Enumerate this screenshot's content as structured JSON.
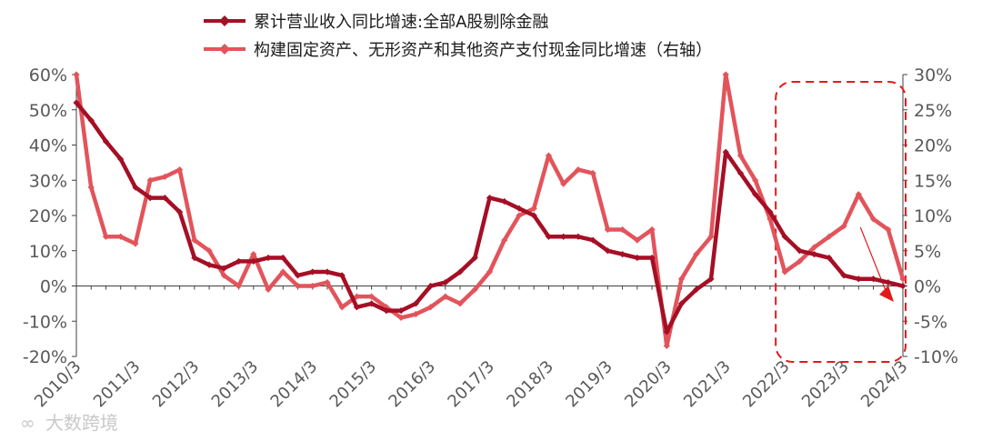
{
  "chart_data": {
    "type": "line",
    "title": "",
    "xlabel": "",
    "ylabel": "",
    "ylim_left": [
      -20,
      60
    ],
    "ylim_right": [
      -10,
      30
    ],
    "left_ticks": [
      "60%",
      "50%",
      "40%",
      "30%",
      "20%",
      "10%",
      "0%",
      "-10%",
      "-20%"
    ],
    "right_ticks": [
      "30%",
      "25%",
      "20%",
      "15%",
      "10%",
      "5%",
      "0%",
      "-5%",
      "-10%"
    ],
    "x_tick_labels": [
      "2010/3",
      "2011/3",
      "2012/3",
      "2013/3",
      "2014/3",
      "2015/3",
      "2016/3",
      "2017/3",
      "2018/3",
      "2019/3",
      "2020/3",
      "2021/3",
      "2022/3",
      "2023/3",
      "2024/3"
    ],
    "x_start": "2010/3",
    "x_frequency": "quarterly",
    "series": [
      {
        "name": "累计营业收入同比增速:全部A股剔除金融",
        "axis": "left",
        "color": "#a50f25",
        "values": [
          52,
          47,
          41,
          36,
          28,
          25,
          25,
          21,
          8,
          6,
          5,
          7,
          7,
          8,
          8,
          3,
          4,
          4,
          3,
          -6,
          -5,
          -7,
          -7,
          -5,
          0,
          1,
          4,
          8,
          25,
          24,
          22,
          20,
          14,
          14,
          14,
          13,
          10,
          9,
          8,
          8,
          -13,
          -5,
          -1,
          2,
          38,
          32,
          26,
          21,
          14,
          10,
          9,
          8,
          3,
          2,
          2,
          1,
          0
        ]
      },
      {
        "name": "构建固定资产、无形资产和其他资产支付现金同比增速（右轴）",
        "axis": "right",
        "color": "#e2545b",
        "values": [
          30,
          14,
          7,
          7,
          6,
          15,
          15.5,
          16.5,
          6.5,
          5,
          1.5,
          0,
          4.5,
          -0.5,
          2,
          0,
          0,
          0.5,
          -3,
          -1.5,
          -1.5,
          -3,
          -4.5,
          -4,
          -3,
          -1.5,
          -2.5,
          -0.5,
          2,
          6.5,
          10,
          11,
          18.5,
          14.5,
          16.5,
          16,
          8,
          8,
          6.5,
          8,
          -8.5,
          1,
          4.5,
          7,
          30,
          18.5,
          15,
          9.5,
          2,
          3.5,
          5.5,
          7,
          8.5,
          13,
          9.5,
          8,
          1
        ]
      }
    ],
    "annotations": [
      {
        "type": "dashed-rounded-box",
        "color": "#e31a1c",
        "from": "2022/3",
        "to": "2024/3"
      },
      {
        "type": "arrow",
        "color": "#e31a1c",
        "direction": "down-right"
      }
    ],
    "grid": false,
    "legend": "top-center"
  },
  "watermark": "大数跨境"
}
